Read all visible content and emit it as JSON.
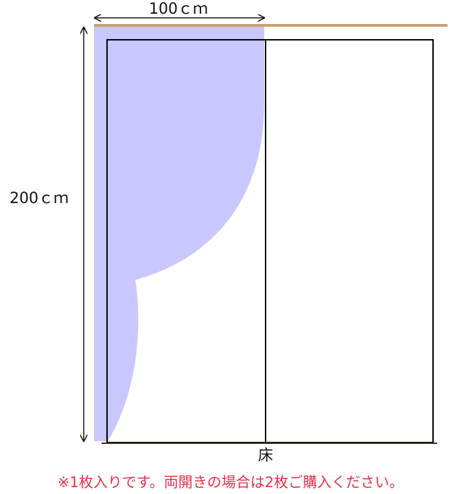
{
  "labels": {
    "width": "100ｃｍ",
    "height": "200ｃｍ",
    "floor": "床"
  },
  "note": "※1枚入りです。両開きの場合は2枚ご購入ください。"
}
